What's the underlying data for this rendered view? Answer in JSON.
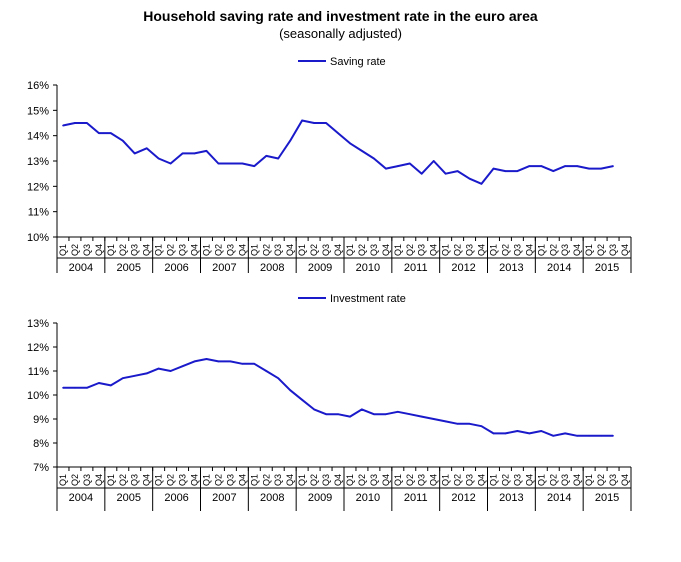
{
  "title": "Household saving rate and investment rate in the euro area",
  "subtitle": "(seasonally adjusted)",
  "chart_data": [
    {
      "type": "line",
      "title": "Saving rate",
      "legend": "Saving rate",
      "legend_position": "top-center",
      "color": "#1a1aca",
      "ylim": [
        10,
        16
      ],
      "yticks": [
        "10%",
        "11%",
        "12%",
        "13%",
        "14%",
        "15%",
        "16%"
      ],
      "quarters": [
        "Q1",
        "Q2",
        "Q3",
        "Q4"
      ],
      "years": [
        "2004",
        "2005",
        "2006",
        "2007",
        "2008",
        "2009",
        "2010",
        "2011",
        "2012",
        "2013",
        "2014",
        "2015"
      ],
      "values": [
        14.4,
        14.5,
        14.5,
        14.1,
        14.1,
        13.8,
        13.3,
        13.5,
        13.1,
        12.9,
        13.3,
        13.3,
        13.4,
        12.9,
        12.9,
        12.9,
        12.8,
        13.2,
        13.1,
        13.8,
        14.6,
        14.5,
        14.5,
        14.1,
        13.7,
        13.4,
        13.1,
        12.7,
        12.8,
        12.9,
        12.5,
        13.0,
        12.5,
        12.6,
        12.3,
        12.1,
        12.7,
        12.6,
        12.6,
        12.8,
        12.8,
        12.6,
        12.8,
        12.8,
        12.7,
        12.7,
        12.8
      ]
    },
    {
      "type": "line",
      "title": "Investment rate",
      "legend": "Investment rate",
      "legend_position": "top-center",
      "color": "#1a1aca",
      "ylim": [
        7,
        13
      ],
      "yticks": [
        "7%",
        "8%",
        "9%",
        "10%",
        "11%",
        "12%",
        "13%"
      ],
      "quarters": [
        "Q1",
        "Q2",
        "Q3",
        "Q4"
      ],
      "years": [
        "2004",
        "2005",
        "2006",
        "2007",
        "2008",
        "2009",
        "2010",
        "2011",
        "2012",
        "2013",
        "2014",
        "2015"
      ],
      "values": [
        10.3,
        10.3,
        10.3,
        10.5,
        10.4,
        10.7,
        10.8,
        10.9,
        11.1,
        11.0,
        11.2,
        11.4,
        11.5,
        11.4,
        11.4,
        11.3,
        11.3,
        11.0,
        10.7,
        10.2,
        9.8,
        9.4,
        9.2,
        9.2,
        9.1,
        9.4,
        9.2,
        9.2,
        9.3,
        9.2,
        9.1,
        9.0,
        8.9,
        8.8,
        8.8,
        8.7,
        8.4,
        8.4,
        8.5,
        8.4,
        8.5,
        8.3,
        8.4,
        8.3,
        8.3,
        8.3,
        8.3
      ]
    }
  ]
}
